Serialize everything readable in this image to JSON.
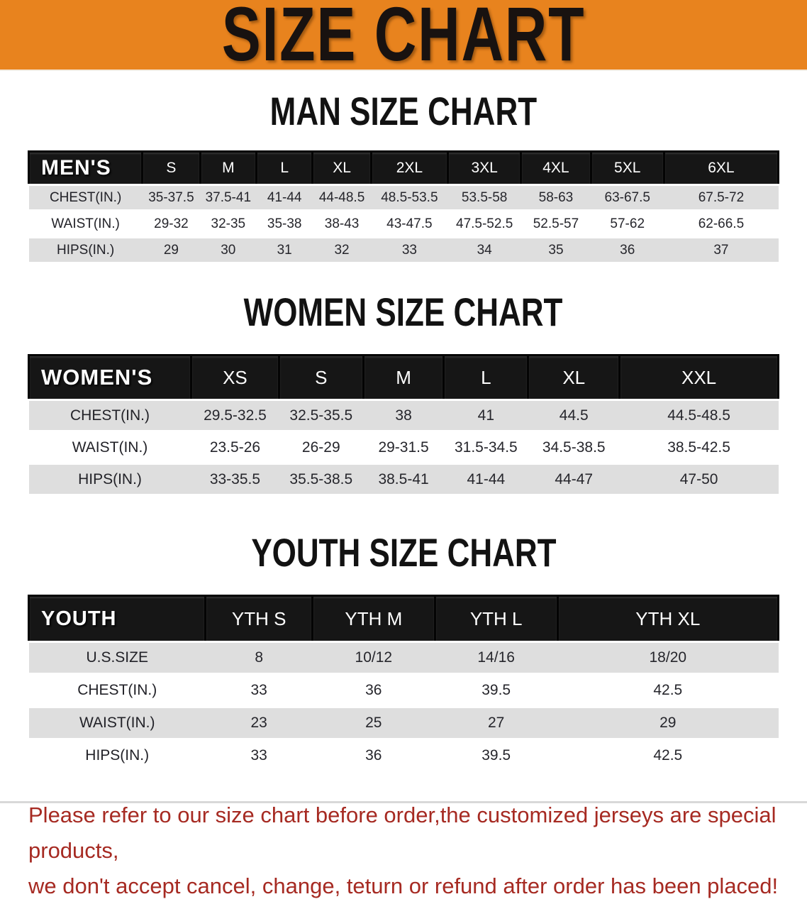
{
  "banner": {
    "title": "SIZE CHART"
  },
  "sections": [
    {
      "heading": "MAN SIZE CHART",
      "table": {
        "label": "MEN'S",
        "columns": [
          "S",
          "M",
          "L",
          "XL",
          "2XL",
          "3XL",
          "4XL",
          "5XL",
          "6XL"
        ],
        "rows": [
          {
            "label": "CHEST(IN.)",
            "values": [
              "35-37.5",
              "37.5-41",
              "41-44",
              "44-48.5",
              "48.5-53.5",
              "53.5-58",
              "58-63",
              "63-67.5",
              "67.5-72"
            ]
          },
          {
            "label": "WAIST(IN.)",
            "values": [
              "29-32",
              "32-35",
              "35-38",
              "38-43",
              "43-47.5",
              "47.5-52.5",
              "52.5-57",
              "57-62",
              "62-66.5"
            ]
          },
          {
            "label": "HIPS(IN.)",
            "values": [
              "29",
              "30",
              "31",
              "32",
              "33",
              "34",
              "35",
              "36",
              "37"
            ]
          }
        ]
      }
    },
    {
      "heading": "WOMEN SIZE CHART",
      "table": {
        "label": "WOMEN'S",
        "columns": [
          "XS",
          "S",
          "M",
          "L",
          "XL",
          "XXL"
        ],
        "rows": [
          {
            "label": "CHEST(IN.)",
            "values": [
              "29.5-32.5",
              "32.5-35.5",
              "38",
              "41",
              "44.5",
              "44.5-48.5"
            ]
          },
          {
            "label": "WAIST(IN.)",
            "values": [
              "23.5-26",
              "26-29",
              "29-31.5",
              "31.5-34.5",
              "34.5-38.5",
              "38.5-42.5"
            ]
          },
          {
            "label": "HIPS(IN.)",
            "values": [
              "33-35.5",
              "35.5-38.5",
              "38.5-41",
              "41-44",
              "44-47",
              "47-50"
            ]
          }
        ]
      }
    },
    {
      "heading": "YOUTH SIZE CHART",
      "table": {
        "label": "YOUTH",
        "columns": [
          "YTH S",
          "YTH M",
          "YTH L",
          "YTH XL"
        ],
        "rows": [
          {
            "label": "U.S.SIZE",
            "values": [
              "8",
              "10/12",
              "14/16",
              "18/20"
            ]
          },
          {
            "label": "CHEST(IN.)",
            "values": [
              "33",
              "36",
              "39.5",
              "42.5"
            ]
          },
          {
            "label": "WAIST(IN.)",
            "values": [
              "23",
              "25",
              "27",
              "29"
            ]
          },
          {
            "label": "HIPS(IN.)",
            "values": [
              "33",
              "36",
              "39.5",
              "42.5"
            ]
          }
        ]
      }
    }
  ],
  "disclaimer": {
    "line1": "Please refer to our size chart before order,the customized jerseys are special products,",
    "line2": "we don't accept cancel, change, teturn or refund after order has been placed!"
  },
  "colors": {
    "banner_orange": "#E8831E",
    "header_band_black": "#161616",
    "row_stripe_gray": "#DEDEDE",
    "disclaimer_red": "#A62A22"
  }
}
